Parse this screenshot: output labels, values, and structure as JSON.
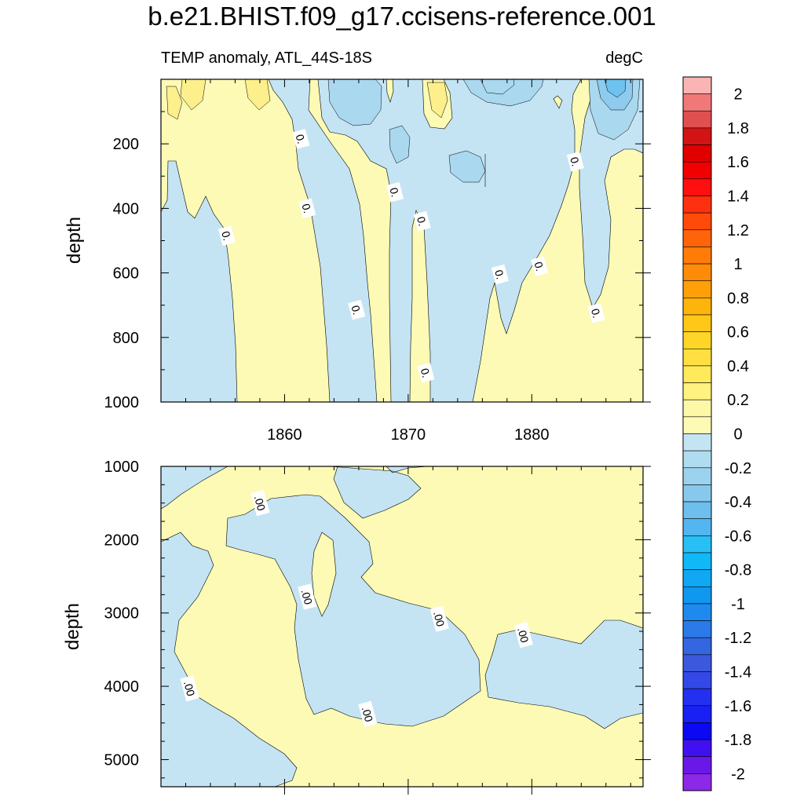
{
  "title": "b.e21.BHIST.f09_g17.ccisens-reference.001",
  "colors": {
    "positive": "#fcfab4",
    "negative": "#c4e4f4",
    "line": "#000000"
  },
  "chart_data": [
    {
      "type": "heatmap",
      "left_label": "TEMP anomaly, ATL_44S-18S",
      "right_label": "degC",
      "ylabel": "depth",
      "xlim": [
        1850,
        1889
      ],
      "ylim": [
        1000,
        0
      ],
      "x_ticks": [
        1860,
        1870,
        1880
      ],
      "y_ticks": [
        200,
        400,
        600,
        800,
        1000
      ],
      "contour_labels": [
        {
          "text": "0.",
          "x": 1855.3,
          "y": 485
        },
        {
          "text": "0.",
          "x": 1861.3,
          "y": 185
        },
        {
          "text": "0.",
          "x": 1861.8,
          "y": 400
        },
        {
          "text": "0.",
          "x": 1868.9,
          "y": 350
        },
        {
          "text": "0.",
          "x": 1871.1,
          "y": 440
        },
        {
          "text": "0.",
          "x": 1865.8,
          "y": 715
        },
        {
          "text": "0.",
          "x": 1871.4,
          "y": 910
        },
        {
          "text": "0.",
          "x": 1877.4,
          "y": 605
        },
        {
          "text": "0.",
          "x": 1880.6,
          "y": 580
        },
        {
          "text": "0.",
          "x": 1883.5,
          "y": 255
        },
        {
          "text": "0.",
          "x": 1885.2,
          "y": 725
        }
      ]
    },
    {
      "type": "heatmap",
      "ylabel": "depth",
      "xlim": [
        1850,
        1889
      ],
      "ylim": [
        5370,
        1000
      ],
      "y_ticks": [
        1000,
        2000,
        3000,
        4000,
        5000
      ],
      "contour_labels": [
        {
          "text": ".00",
          "x": 1858,
          "y": 1500
        },
        {
          "text": ".00",
          "x": 1861.8,
          "y": 2780
        },
        {
          "text": ".00",
          "x": 1872.5,
          "y": 3080
        },
        {
          "text": ".00",
          "x": 1879.3,
          "y": 3300
        },
        {
          "text": ".00",
          "x": 1852.3,
          "y": 4030
        },
        {
          "text": ".00",
          "x": 1866.7,
          "y": 4380
        }
      ]
    }
  ],
  "colorbar": {
    "labels": [
      "2",
      "1.8",
      "1.6",
      "1.4",
      "1.2",
      "1",
      "0.8",
      "0.6",
      "0.4",
      "0.2",
      "0",
      "-0.2",
      "-0.4",
      "-0.6",
      "-0.8",
      "-1",
      "-1.2",
      "-1.4",
      "-1.6",
      "-1.8",
      "-2"
    ],
    "colors": [
      "#fbb4b4",
      "#f07878",
      "#e05050",
      "#d21414",
      "#e00000",
      "#f00000",
      "#ff1010",
      "#ff3010",
      "#ff4a0a",
      "#ff640a",
      "#ff7c08",
      "#ff8c08",
      "#ffa008",
      "#ffb40a",
      "#ffc818",
      "#ffd628",
      "#ffe040",
      "#ffea5a",
      "#fff280",
      "#fcf8a8",
      "#fcfab4",
      "#c4e4f4",
      "#b0dcf0",
      "#9cd2ee",
      "#88c8ec",
      "#6ebeee",
      "#52b6f0",
      "#28c0f4",
      "#10b8f8",
      "#10a8f4",
      "#1098f0",
      "#1e8af0",
      "#2a7ae8",
      "#3466e0",
      "#3c58dc",
      "#3448e8",
      "#2430f0",
      "#1820f4",
      "#0c08f4",
      "#4010f0",
      "#6a18e8",
      "#8c28e8"
    ]
  }
}
